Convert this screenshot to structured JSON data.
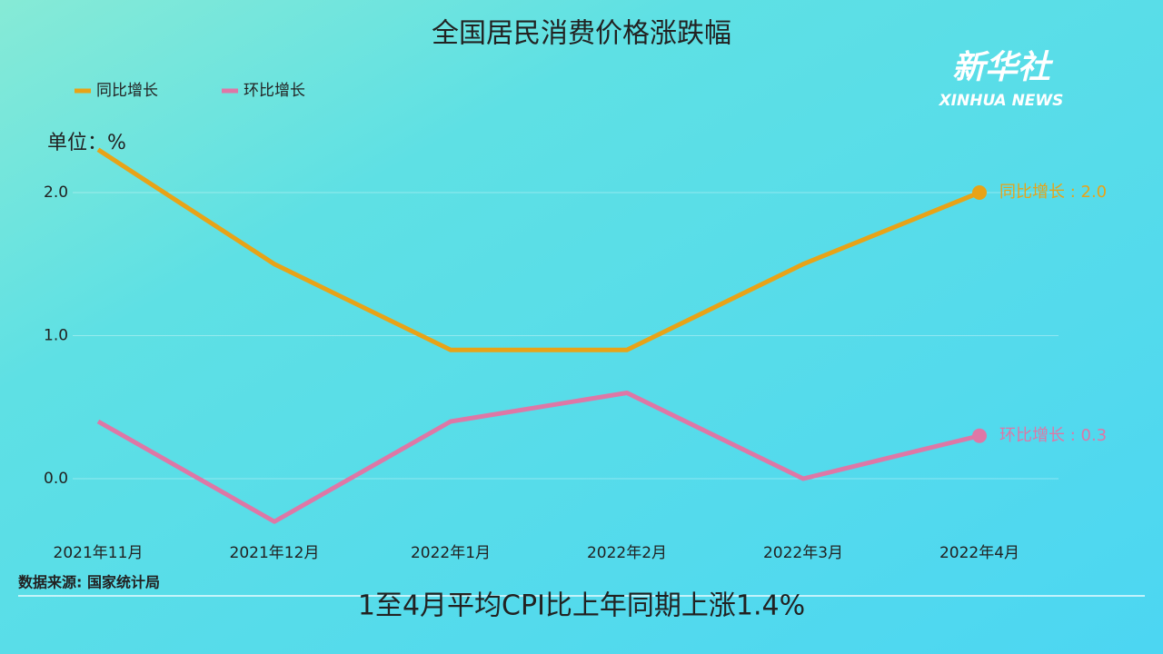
{
  "chart_data": {
    "type": "line",
    "title": "全国居民消费价格涨跌幅",
    "y_unit_label": "单位：%",
    "categories": [
      "2021年11月",
      "2021年12月",
      "2022年1月",
      "2022年2月",
      "2022年3月",
      "2022年4月"
    ],
    "series": [
      {
        "name": "同比增长",
        "color": "#e8a317",
        "values": [
          2.3,
          1.5,
          0.9,
          0.9,
          1.5,
          2.0
        ],
        "end_label": "同比增长 : 2.0"
      },
      {
        "name": "环比增长",
        "color": "#de77a6",
        "values": [
          0.4,
          -0.3,
          0.4,
          0.6,
          0.0,
          0.3
        ],
        "end_label": "环比增长 : 0.3"
      }
    ],
    "ylim": [
      -0.4,
      2.4
    ],
    "yticks": [
      {
        "value": 0,
        "label": "0.0"
      },
      {
        "value": 1,
        "label": "1.0"
      },
      {
        "value": 2,
        "label": "2.0"
      }
    ],
    "grid": true,
    "legend": "top-left",
    "source": "数据来源: 国家统计局"
  },
  "overlay": {
    "caption": "1至4月平均CPI比上年同期上涨1.4%",
    "logo": "新华社",
    "logo_sub": "XINHUA NEWS"
  }
}
